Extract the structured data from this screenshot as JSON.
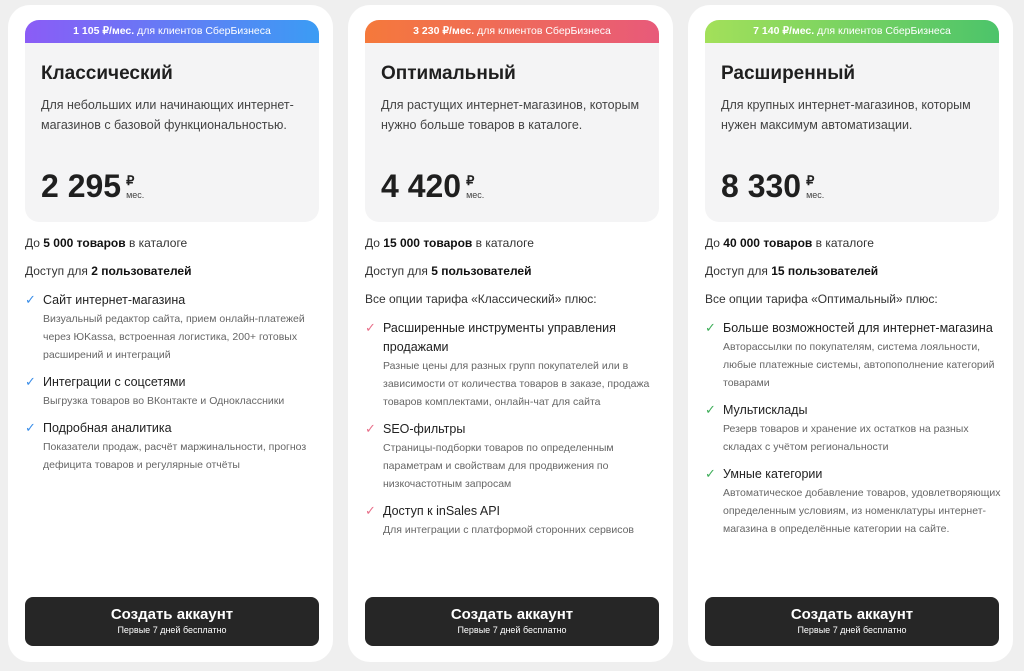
{
  "button_label": "Создать аккаунт",
  "button_sub": "Первые 7 дней бесплатно",
  "per_unit": "мес.",
  "currency": "₽",
  "plans": [
    {
      "badge_price": "1 105 ₽/мес.",
      "badge_text": "для клиентов СберБизнеса",
      "gradient": [
        "#8b5cf6",
        "#3b9cf4"
      ],
      "check_color": "#3b8ee8",
      "title": "Классический",
      "description": "Для небольших или начинающих интернет-магазинов с базовой функциональностью.",
      "price": "2 295",
      "goods_prefix": "До ",
      "goods_bold": "5 000 товаров",
      "goods_suffix": " в каталоге",
      "users_prefix": "Доступ для ",
      "users_bold": "2 пользователей",
      "includes": "",
      "features": [
        {
          "title": "Сайт интернет-магазина",
          "desc": "Визуальный редактор сайта, прием онлайн-платежей через ЮKassa, встроенная логистика, 200+ готовых расширений и интеграций"
        },
        {
          "title": "Интеграции с соцсетями",
          "desc": "Выгрузка товаров во ВКонтакте и Одноклассники"
        },
        {
          "title": "Подробная аналитика",
          "desc": "Показатели продаж, расчёт маржинальности, прогноз дефицита товаров и регулярные отчёты"
        }
      ]
    },
    {
      "badge_price": "3 230 ₽/мес.",
      "badge_text": "для клиентов СберБизнеса",
      "gradient": [
        "#f5793b",
        "#e85a7a"
      ],
      "check_color": "#e8708a",
      "title": "Оптимальный",
      "description": "Для растущих интернет-магазинов, которым нужно больше товаров в каталоге.",
      "price": "4 420",
      "goods_prefix": "До ",
      "goods_bold": "15 000 товаров",
      "goods_suffix": " в каталоге",
      "users_prefix": "Доступ для ",
      "users_bold": "5 пользователей",
      "includes": "Все опции тарифа «Классический» плюс:",
      "features": [
        {
          "title": "Расширенные инструменты управления продажами",
          "desc": "Разные цены для разных групп покупателей или в зависимости от количества товаров в заказе, продажа товаров комплектами, онлайн-чат для сайта"
        },
        {
          "title": "SEO-фильтры",
          "desc": "Страницы-подборки товаров по определенным параметрам и свойствам для продвижения по низкочастотным запросам"
        },
        {
          "title": "Доступ к inSales API",
          "desc": "Для интеграции с платформой сторонних сервисов"
        }
      ]
    },
    {
      "badge_price": "7 140 ₽/мес.",
      "badge_text": "для клиентов СберБизнеса",
      "gradient": [
        "#a3e05a",
        "#4cc46a"
      ],
      "check_color": "#3fae5a",
      "title": "Расширенный",
      "description": "Для крупных интернет-магазинов, которым нужен максимум автоматизации.",
      "price": "8 330",
      "goods_prefix": "До ",
      "goods_bold": "40 000 товаров",
      "goods_suffix": " в каталоге",
      "users_prefix": "Доступ для ",
      "users_bold": "15 пользователей",
      "includes": "Все опции тарифа «Оптимальный» плюс:",
      "features": [
        {
          "title": "Больше возможностей для интернет-магазина",
          "desc": "Авторассылки по покупателям, система лояльности, любые платежные системы, автопополнение категорий товарами"
        },
        {
          "title": "Мультисклады",
          "desc": "Резерв товаров и хранение их остатков на разных складах с учётом региональности"
        },
        {
          "title": "Умные категории",
          "desc": "Автоматическое добавление товаров, удовлетворяющих определенным условиям, из номенклатуры интернет-магазина в определённые категории на сайте."
        }
      ]
    }
  ]
}
